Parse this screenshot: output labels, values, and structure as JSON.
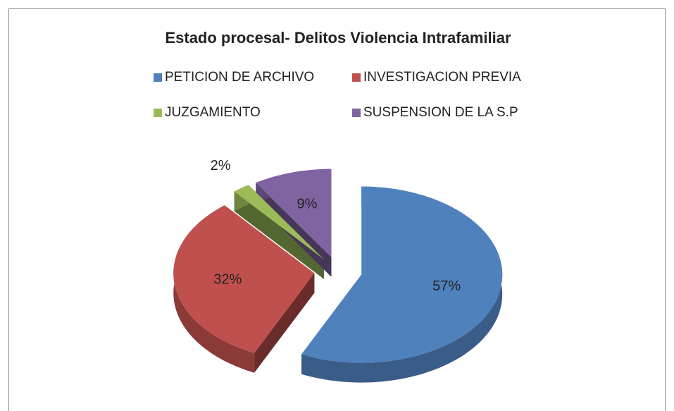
{
  "chart_data": {
    "type": "pie3d",
    "title": "Estado procesal- Delitos Violencia Intrafamiliar",
    "categories": [
      "PETICION DE ARCHIVO",
      "INVESTIGACION PREVIA",
      "JUZGAMIENTO",
      "SUSPENSION DE LA S.P"
    ],
    "values": [
      57,
      32,
      2,
      9
    ],
    "value_labels": [
      "57%",
      "32%",
      "2%",
      "9%"
    ],
    "colors": [
      "#4f81bd",
      "#c0504d",
      "#9bbb59",
      "#8064a2"
    ],
    "legend": "top"
  }
}
